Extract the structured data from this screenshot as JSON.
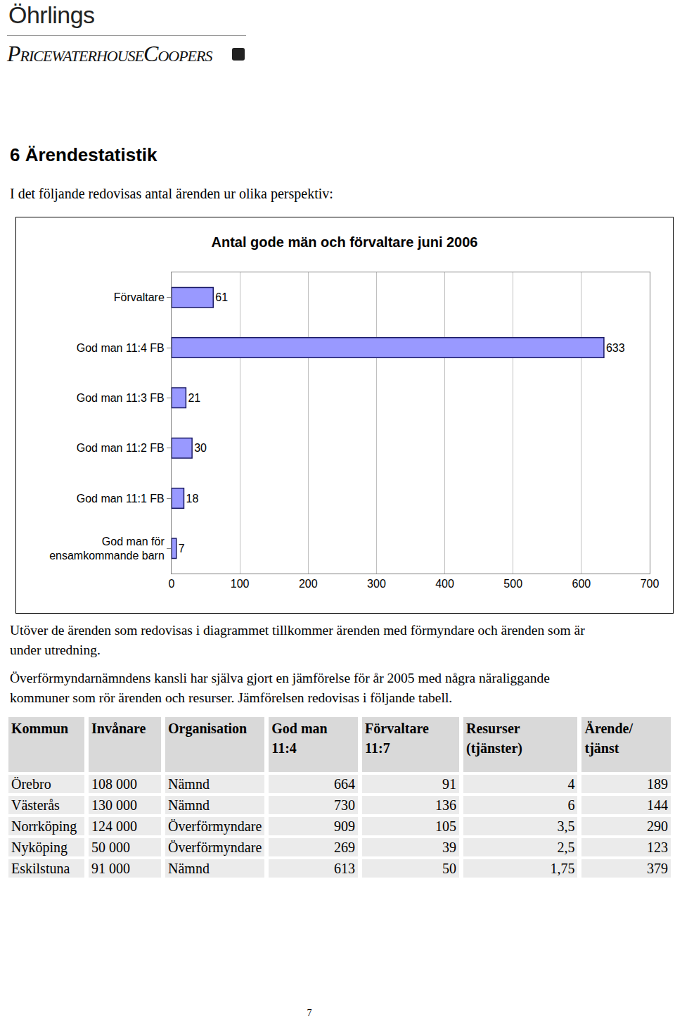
{
  "header": {
    "brand": "Öhrlings",
    "logo": "PricewaterhouseCoopers"
  },
  "heading": "6 Ärendestatistik",
  "intro": "I det följande redovisas antal ärenden ur olika perspektiv:",
  "chart_data": {
    "type": "bar",
    "orientation": "horizontal",
    "title": "Antal gode män och förvaltare juni 2006",
    "categories": [
      "Förvaltare",
      "God man 11:4 FB",
      "God man 11:3 FB",
      "God man 11:2 FB",
      "God man 11:1 FB",
      "God man för\nensamkommande barn"
    ],
    "values": [
      61,
      633,
      21,
      30,
      18,
      7
    ],
    "color": "#9999ff",
    "xlim": [
      0,
      700
    ],
    "xticks": [
      0,
      100,
      200,
      300,
      400,
      500,
      600,
      700
    ],
    "grid": true,
    "data_labels": true
  },
  "paragraphs": [
    "Utöver de ärenden som redovisas i diagrammet tillkommer ärenden med förmyndare och ärenden som är under utredning.",
    "Överförmyndarnämndens kansli har själva gjort en jämförelse för år 2005 med några näraliggande kommuner som rör ärenden och resurser. Jämförelsen redovisas i följande tabell."
  ],
  "table": {
    "header": [
      "Kommun",
      "Invånare",
      "Organisation",
      "God man 11:4",
      "Förvaltare 11:7",
      "Resurser (tjänster)",
      "Ärende/ tjänst"
    ],
    "rows": [
      [
        "Örebro",
        "108 000",
        "Nämnd",
        "664",
        "91",
        "4",
        "189"
      ],
      [
        "Västerås",
        "130 000",
        "Nämnd",
        "730",
        "136",
        "6",
        "144"
      ],
      [
        "Norrköping",
        "124 000",
        "Överförmyndare",
        "909",
        "105",
        "3,5",
        "290"
      ],
      [
        "Nyköping",
        "50 000",
        "Överförmyndare",
        "269",
        "39",
        "2,5",
        "123"
      ],
      [
        "Eskilstuna",
        "91 000",
        "Nämnd",
        "613",
        "50",
        "1,75",
        "379"
      ]
    ]
  },
  "page_number": "7"
}
